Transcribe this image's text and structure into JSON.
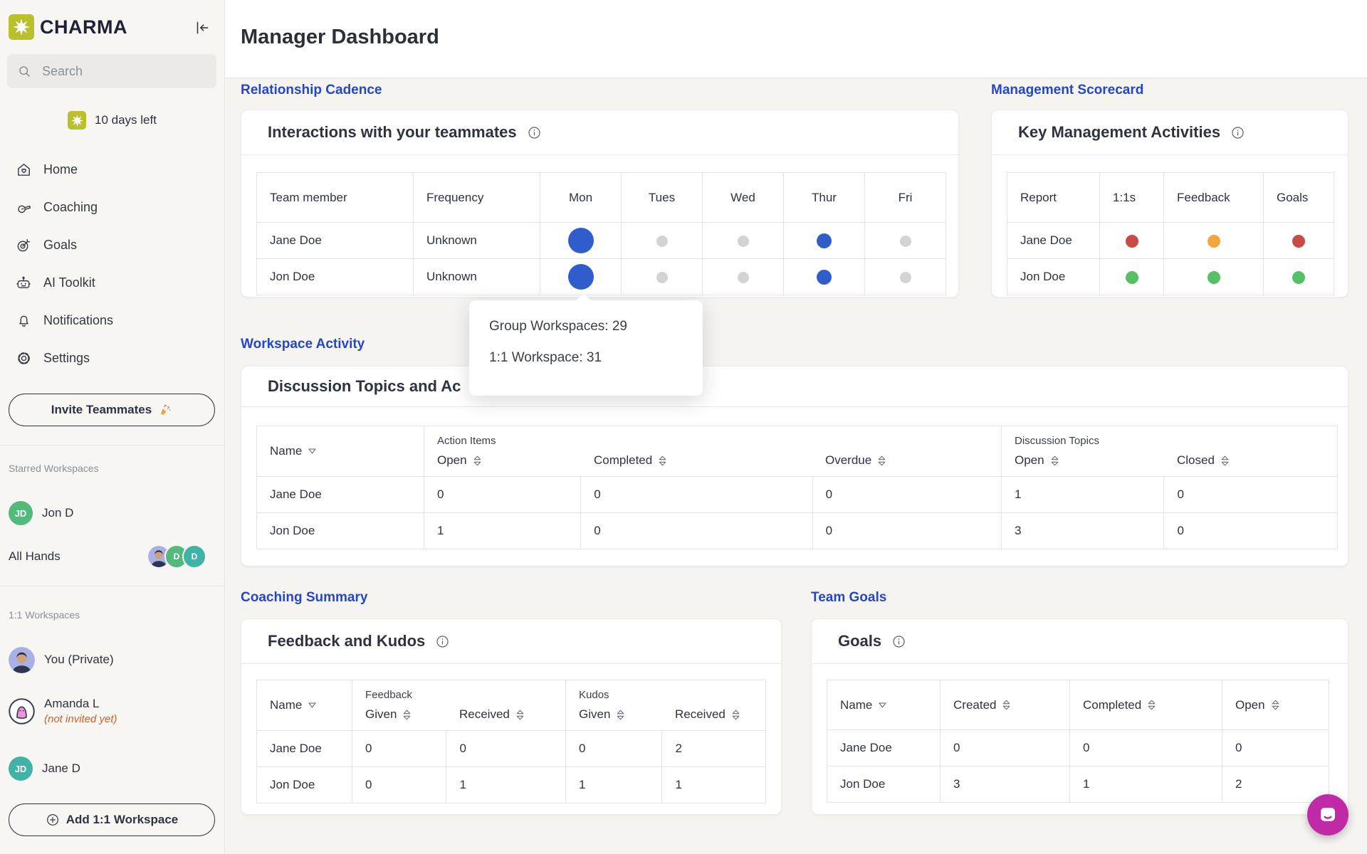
{
  "palette": {
    "blue": "#2f5ecc",
    "gray": "#d3d3d5",
    "red": "#c94b47",
    "orange": "#f0a73e",
    "green": "#55c064",
    "accent": "#2447c5",
    "brand": "#b9c02c",
    "chat": "#c02aa6"
  },
  "sidebar": {
    "brand": "CHARMA",
    "search": {
      "placeholder": "Search"
    },
    "trial": "10 days left",
    "nav": [
      {
        "label": "Home",
        "icon": "home-heart-icon"
      },
      {
        "label": "Coaching",
        "icon": "whistle-icon"
      },
      {
        "label": "Goals",
        "icon": "target-icon"
      },
      {
        "label": "AI Toolkit",
        "icon": "robot-icon"
      },
      {
        "label": "Notifications",
        "icon": "bell-icon"
      },
      {
        "label": "Settings",
        "icon": "gear-icon"
      }
    ],
    "invite_button": {
      "label": "Invite Teammates",
      "icon": "party-popper-icon"
    },
    "starred_heading": "Starred Workspaces",
    "starred": [
      {
        "name": "Jon D",
        "avatar_initials": "JD",
        "avatar_color": "#53b97d"
      },
      {
        "name": "All Hands",
        "members": [
          {
            "type": "photo"
          },
          {
            "initial": "D",
            "color": "#53b97d"
          },
          {
            "initial": "D",
            "color": "#3fb3a6"
          }
        ]
      }
    ],
    "one_on_one_heading": "1:1 Workspaces",
    "one_on_one": [
      {
        "name": "You (Private)",
        "avatar": "photo"
      },
      {
        "name": "Amanda L",
        "note": "(not invited yet)",
        "avatar": "blob"
      },
      {
        "name": "Jane D",
        "avatar_initials": "JD",
        "avatar_color": "#3fb3a6"
      }
    ],
    "add_button": {
      "label": "Add 1:1 Workspace",
      "icon": "plus-circle-icon"
    }
  },
  "header": {
    "title": "Manager Dashboard"
  },
  "sections": {
    "relationship_cadence": "Relationship Cadence",
    "management_scorecard": "Management Scorecard",
    "workspace_activity": "Workspace Activity",
    "coaching_summary": "Coaching Summary",
    "team_goals": "Team Goals"
  },
  "interactions": {
    "title": "Interactions with your teammates",
    "columns": [
      "Team member",
      "Frequency",
      "Mon",
      "Tues",
      "Wed",
      "Thur",
      "Fri"
    ],
    "rows": [
      {
        "name": "Jane Doe",
        "frequency": "Unknown",
        "days": [
          {
            "color": "blue",
            "size": "lg"
          },
          {
            "color": "gray",
            "size": "sm"
          },
          {
            "color": "gray",
            "size": "sm"
          },
          {
            "color": "blue",
            "size": "md"
          },
          {
            "color": "gray",
            "size": "sm"
          }
        ]
      },
      {
        "name": "Jon Doe",
        "frequency": "Unknown",
        "days": [
          {
            "color": "blue",
            "size": "lg"
          },
          {
            "color": "gray",
            "size": "sm"
          },
          {
            "color": "gray",
            "size": "sm"
          },
          {
            "color": "blue",
            "size": "md"
          },
          {
            "color": "gray",
            "size": "sm"
          }
        ]
      }
    ]
  },
  "scorecard": {
    "title": "Key Management Activities",
    "columns": [
      "Report",
      "1:1s",
      "Feedback",
      "Goals"
    ],
    "rows": [
      {
        "name": "Jane Doe",
        "dots": [
          "red",
          "orange",
          "red"
        ]
      },
      {
        "name": "Jon Doe",
        "dots": [
          "green",
          "green",
          "green"
        ]
      }
    ]
  },
  "tooltip": {
    "lines": [
      "Group Workspaces: 29",
      "1:1 Workspace: 31"
    ]
  },
  "discussion": {
    "title": "Discussion Topics and Ac",
    "name_column": "Name",
    "groups": [
      {
        "label": "Action Items",
        "columns": [
          "Open",
          "Completed",
          "Overdue"
        ]
      },
      {
        "label": "Discussion Topics",
        "columns": [
          "Open",
          "Closed"
        ]
      }
    ],
    "rows": [
      {
        "name": "Jane Doe",
        "values": [
          "0",
          "0",
          "0",
          "1",
          "0"
        ]
      },
      {
        "name": "Jon Doe",
        "values": [
          "1",
          "0",
          "0",
          "3",
          "0"
        ]
      }
    ]
  },
  "feedback_kudos": {
    "title": "Feedback and Kudos",
    "name_column": "Name",
    "groups": [
      {
        "label": "Feedback",
        "columns": [
          "Given",
          "Received"
        ]
      },
      {
        "label": "Kudos",
        "columns": [
          "Given",
          "Received"
        ]
      }
    ],
    "rows": [
      {
        "name": "Jane Doe",
        "values": [
          "0",
          "0",
          "0",
          "2"
        ]
      },
      {
        "name": "Jon Doe",
        "values": [
          "0",
          "1",
          "1",
          "1"
        ]
      }
    ]
  },
  "goals": {
    "title": "Goals",
    "name_column": "Name",
    "columns": [
      "Created",
      "Completed",
      "Open"
    ],
    "rows": [
      {
        "name": "Jane Doe",
        "values": [
          "0",
          "0",
          "0"
        ]
      },
      {
        "name": "Jon Doe",
        "values": [
          "3",
          "1",
          "2"
        ]
      }
    ]
  }
}
